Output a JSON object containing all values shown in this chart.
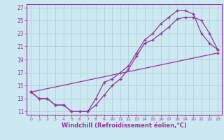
{
  "bg_color": "#cce8f0",
  "grid_color": "#b0d0d8",
  "line_color": "#993399",
  "spine_color": "#993399",
  "xlabel": "Windchill (Refroidissement éolien,°C)",
  "xlim": [
    -0.5,
    23.5
  ],
  "ylim": [
    10.5,
    27.5
  ],
  "yticks": [
    11,
    13,
    15,
    17,
    19,
    21,
    23,
    25,
    27
  ],
  "xticks": [
    0,
    1,
    2,
    3,
    4,
    5,
    6,
    7,
    8,
    9,
    10,
    11,
    12,
    13,
    14,
    15,
    16,
    17,
    18,
    19,
    20,
    21,
    22,
    23
  ],
  "line1_x": [
    0,
    1,
    2,
    3,
    4,
    5,
    6,
    7,
    8,
    9,
    10,
    11,
    12,
    13,
    14,
    15,
    16,
    17,
    18,
    19,
    20,
    21,
    22,
    23
  ],
  "line1_y": [
    14,
    13,
    13,
    12,
    12,
    11,
    11,
    11,
    13,
    15.5,
    16,
    17,
    18,
    20,
    22,
    23,
    24.5,
    25.5,
    26.5,
    26.5,
    26,
    23,
    21.5,
    20.5
  ],
  "line2_x": [
    0,
    1,
    2,
    3,
    4,
    5,
    6,
    7,
    8,
    9,
    10,
    11,
    12,
    13,
    14,
    15,
    16,
    17,
    18,
    19,
    20,
    21,
    22,
    23
  ],
  "line2_y": [
    14,
    13,
    13,
    12,
    12,
    11,
    11,
    11,
    12,
    13.5,
    15,
    16,
    17.5,
    19.5,
    21.5,
    22,
    23,
    24,
    25.2,
    25.5,
    25.5,
    25,
    23,
    20.5
  ],
  "line3_x": [
    0,
    23
  ],
  "line3_y": [
    14,
    20
  ],
  "lw": 0.9,
  "ms": 3.5,
  "xlabel_fontsize": 6.0,
  "tick_fontsize": 5.5
}
